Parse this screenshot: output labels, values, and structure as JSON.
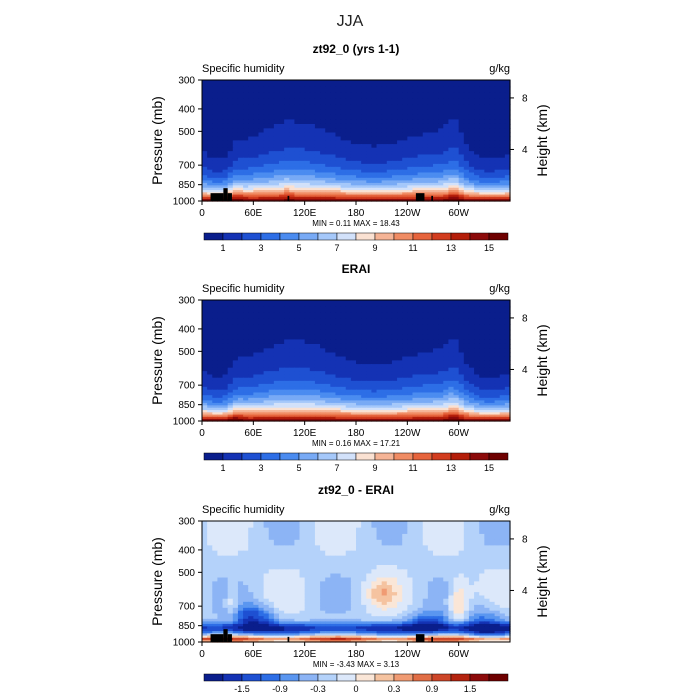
{
  "page_title": "JJA",
  "chart_data": [
    {
      "type": "heatmap",
      "title": "zt92_0 (yrs 1-1)",
      "left_label": "Specific humidity",
      "right_label": "g/kg",
      "ylabel": "Pressure (mb)",
      "ylabel_right": "Height (km)",
      "pressure_ticks": [
        "300",
        "400",
        "500",
        "700",
        "850",
        "1000"
      ],
      "pressure_values": [
        300,
        400,
        500,
        700,
        850,
        1000
      ],
      "height_ticks": [
        "8",
        "4"
      ],
      "height_values": [
        8,
        4
      ],
      "lon_ticks": [
        "0",
        "60E",
        "120E",
        "180",
        "120W",
        "60W"
      ],
      "lon_values": [
        0,
        60,
        120,
        180,
        240,
        300
      ],
      "xlim": [
        0,
        360
      ],
      "ylim": [
        1000,
        300
      ],
      "stats": "MIN =   0.11   MAX =   18.43",
      "colorbar_labels": [
        "1",
        "3",
        "5",
        "7",
        "9",
        "11",
        "13",
        "15"
      ],
      "colorbar_colors": [
        "#0a1e8c",
        "#1432b4",
        "#1e50d2",
        "#2d6ee6",
        "#4b8cf0",
        "#78aaf5",
        "#a5c8fa",
        "#d2e1fa",
        "#fae1d2",
        "#f5b496",
        "#f08c64",
        "#e6643c",
        "#d23c1e",
        "#b41e0a",
        "#8c0a0a",
        "#6e0000"
      ],
      "colorbar_min": 0,
      "colorbar_max": 16,
      "kind": "model"
    },
    {
      "type": "heatmap",
      "title": "ERAI",
      "left_label": "Specific humidity",
      "right_label": "g/kg",
      "ylabel": "Pressure (mb)",
      "ylabel_right": "Height (km)",
      "pressure_ticks": [
        "300",
        "400",
        "500",
        "700",
        "850",
        "1000"
      ],
      "pressure_values": [
        300,
        400,
        500,
        700,
        850,
        1000
      ],
      "height_ticks": [
        "8",
        "4"
      ],
      "height_values": [
        8,
        4
      ],
      "lon_ticks": [
        "0",
        "60E",
        "120E",
        "180",
        "120W",
        "60W"
      ],
      "lon_values": [
        0,
        60,
        120,
        180,
        240,
        300
      ],
      "xlim": [
        0,
        360
      ],
      "ylim": [
        1000,
        300
      ],
      "stats": "MIN =   0.16   MAX =   17.21",
      "colorbar_labels": [
        "1",
        "3",
        "5",
        "7",
        "9",
        "11",
        "13",
        "15"
      ],
      "colorbar_colors": [
        "#0a1e8c",
        "#1432b4",
        "#1e50d2",
        "#2d6ee6",
        "#4b8cf0",
        "#78aaf5",
        "#a5c8fa",
        "#d2e1fa",
        "#fae1d2",
        "#f5b496",
        "#f08c64",
        "#e6643c",
        "#d23c1e",
        "#b41e0a",
        "#8c0a0a",
        "#6e0000"
      ],
      "colorbar_min": 0,
      "colorbar_max": 16,
      "kind": "obs"
    },
    {
      "type": "heatmap",
      "title": "zt92_0 - ERAI",
      "left_label": "Specific humidity",
      "right_label": "g/kg",
      "ylabel": "Pressure (mb)",
      "ylabel_right": "Height (km)",
      "pressure_ticks": [
        "300",
        "400",
        "500",
        "700",
        "850",
        "1000"
      ],
      "pressure_values": [
        300,
        400,
        500,
        700,
        850,
        1000
      ],
      "height_ticks": [
        "8",
        "4"
      ],
      "height_values": [
        8,
        4
      ],
      "lon_ticks": [
        "0",
        "60E",
        "120E",
        "180",
        "120W",
        "60W"
      ],
      "lon_values": [
        0,
        60,
        120,
        180,
        240,
        300
      ],
      "xlim": [
        0,
        360
      ],
      "ylim": [
        1000,
        300
      ],
      "stats": "MIN =   -3.43   MAX =   3.13",
      "colorbar_labels": [
        "-1.5",
        "-0.9",
        "-0.3",
        "0",
        "0.3",
        "0.9",
        "1.5"
      ],
      "colorbar_colors": [
        "#0a1e8c",
        "#1432b4",
        "#1e50d2",
        "#2d6ee6",
        "#5a96f0",
        "#8cb4f5",
        "#b4d2fa",
        "#dce8fa",
        "#fae6d7",
        "#f5c3a0",
        "#f09b73",
        "#e16e46",
        "#cd4628",
        "#b4230f",
        "#8c0a0a",
        "#6e0000"
      ],
      "colorbar_min": -2.1,
      "colorbar_max": 2.1,
      "kind": "diff"
    }
  ]
}
